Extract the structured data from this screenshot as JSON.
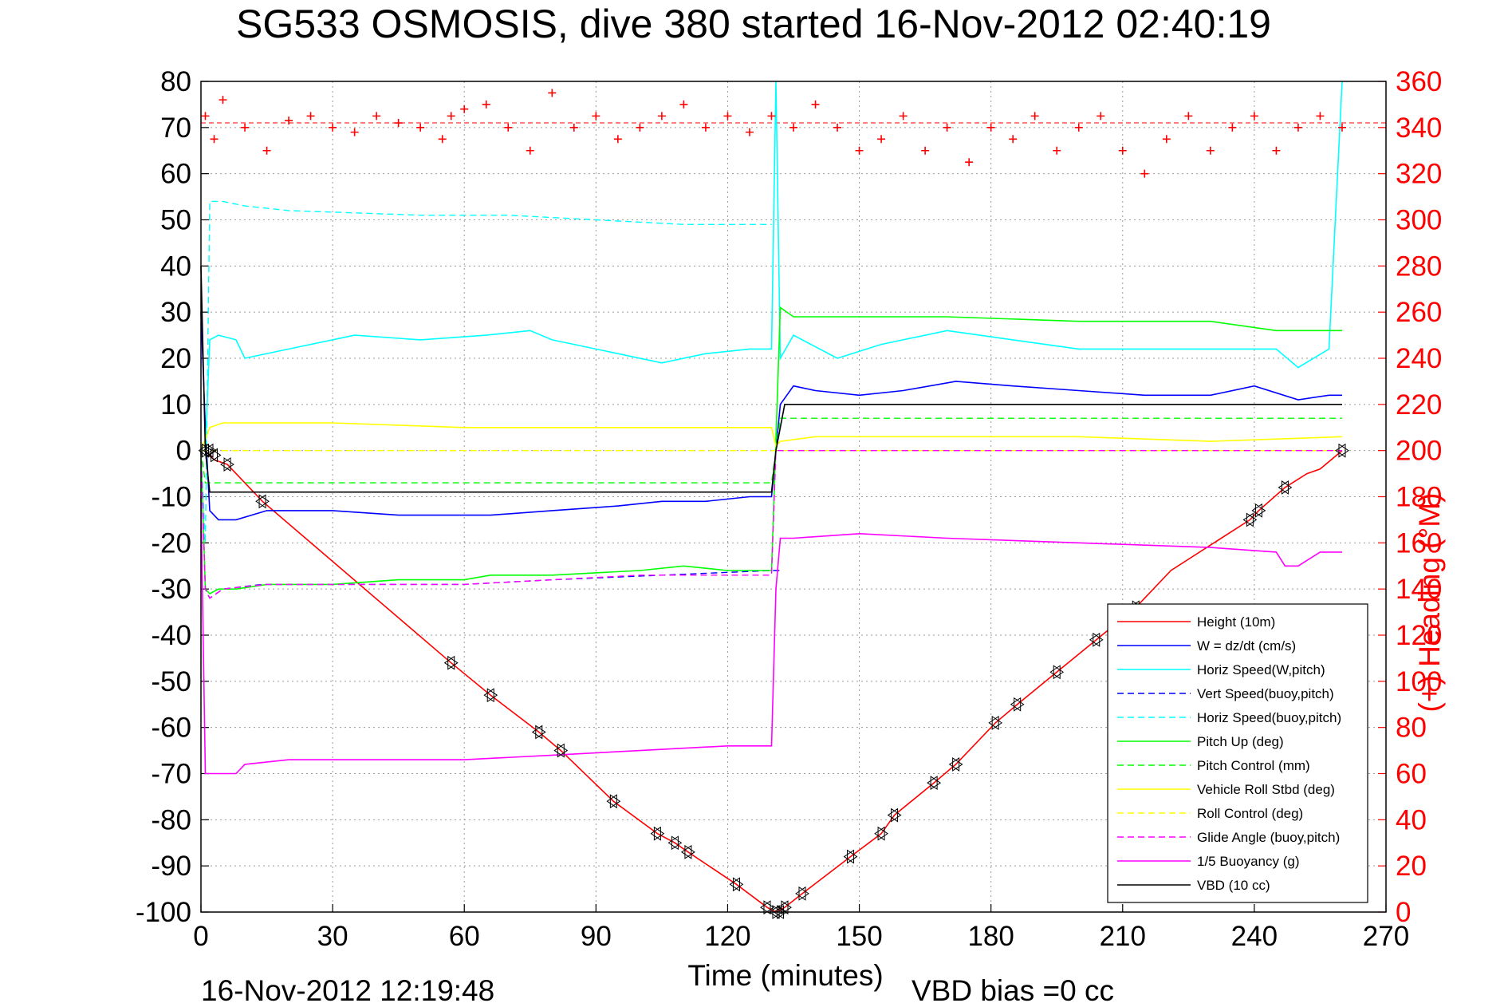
{
  "title": "SG533 OSMOSIS, dive 380 started 16-Nov-2012 02:40:19",
  "footer": {
    "timestamp": "16-Nov-2012 12:19:48",
    "vbd_bias": "VBD bias =0 cc"
  },
  "colors": {
    "height": "#ff0000",
    "w": "#0000ff",
    "horiz": "#00ffff",
    "vert_buoy": "#0000ff",
    "pitch": "#00ff00",
    "roll": "#ffff00",
    "glide": "#ff00ff",
    "buoyancy": "#ff00ff",
    "vbd": "#000000",
    "heading": "#ff0000"
  },
  "chart_data": {
    "type": "line",
    "xlabel": "Time (minutes)",
    "ylabel_right": "(+) Heading (°M)",
    "xlim": [
      0,
      270
    ],
    "ylim": [
      -100,
      80
    ],
    "ylim_right": [
      0,
      360
    ],
    "xticks": [
      "0",
      "30",
      "60",
      "90",
      "120",
      "150",
      "180",
      "210",
      "240",
      "270"
    ],
    "yticks": [
      "-100",
      "-90",
      "-80",
      "-70",
      "-60",
      "-50",
      "-40",
      "-30",
      "-20",
      "-10",
      "0",
      "10",
      "20",
      "30",
      "40",
      "50",
      "60",
      "70",
      "80"
    ],
    "yticks_right": [
      "0",
      "20",
      "40",
      "60",
      "80",
      "100",
      "120",
      "140",
      "160",
      "180",
      "200",
      "220",
      "240",
      "260",
      "280",
      "300",
      "320",
      "340",
      "360"
    ],
    "grid": true,
    "legend_position": "bottom-right",
    "legend": [
      {
        "label": "Height (10m)",
        "color": "#ff0000",
        "style": "solid"
      },
      {
        "label": "W = dz/dt (cm/s)",
        "color": "#0000ff",
        "style": "solid"
      },
      {
        "label": "Horiz Speed(W,pitch)",
        "color": "#00ffff",
        "style": "solid"
      },
      {
        "label": "Vert Speed(buoy,pitch)",
        "color": "#0000ff",
        "style": "dashed"
      },
      {
        "label": "Horiz Speed(buoy,pitch)",
        "color": "#00ffff",
        "style": "dashed"
      },
      {
        "label": "Pitch Up (deg)",
        "color": "#00ff00",
        "style": "solid"
      },
      {
        "label": "Pitch Control (mm)",
        "color": "#00ff00",
        "style": "dashed"
      },
      {
        "label": "Vehicle Roll Stbd (deg)",
        "color": "#ffff00",
        "style": "solid"
      },
      {
        "label": "Roll Control (deg)",
        "color": "#ffff00",
        "style": "dashed"
      },
      {
        "label": "Glide Angle (buoy,pitch)",
        "color": "#ff00ff",
        "style": "dashed"
      },
      {
        "label": "1/5 Buoyancy (g)",
        "color": "#ff00ff",
        "style": "solid"
      },
      {
        "label": "VBD (10 cc)",
        "color": "#000000",
        "style": "solid"
      }
    ],
    "series": [
      {
        "name": "Height (10m)",
        "color": "#ff0000",
        "style": "solid",
        "x": [
          0,
          1,
          2,
          3,
          6,
          14,
          57,
          66,
          77,
          82,
          94,
          104,
          108,
          111,
          122,
          129,
          131,
          133,
          137,
          148,
          155,
          158,
          167,
          172,
          181,
          186,
          195,
          204,
          213,
          221,
          239,
          241,
          247,
          252,
          255,
          260
        ],
        "y": [
          0,
          0,
          -1,
          -2,
          -3,
          -11,
          -46,
          -53,
          -61,
          -65,
          -76,
          -83,
          -85,
          -87,
          -94,
          -99,
          -100,
          -99,
          -96,
          -88,
          -83,
          -79,
          -72,
          -68,
          -59,
          -55,
          -48,
          -41,
          -34,
          -26,
          -15,
          -13,
          -8,
          -5,
          -4,
          0
        ]
      },
      {
        "name": "W = dz/dt (cm/s)",
        "color": "#0000ff",
        "style": "solid",
        "x": [
          0,
          1,
          2,
          4,
          8,
          15,
          30,
          45,
          57,
          66,
          80,
          95,
          105,
          115,
          125,
          130,
          132,
          135,
          140,
          150,
          160,
          172,
          185,
          200,
          215,
          230,
          240,
          250,
          257,
          260
        ],
        "y": [
          30,
          5,
          -13,
          -15,
          -15,
          -13,
          -13,
          -14,
          -14,
          -14,
          -13,
          -12,
          -11,
          -11,
          -10,
          -10,
          10,
          14,
          13,
          12,
          13,
          15,
          14,
          13,
          12,
          12,
          14,
          11,
          12,
          12
        ]
      },
      {
        "name": "Horiz Speed(W,pitch)",
        "color": "#00ffff",
        "style": "solid",
        "x": [
          0,
          1,
          2,
          4,
          8,
          10,
          20,
          35,
          50,
          65,
          75,
          80,
          90,
          105,
          115,
          125,
          130,
          131,
          132,
          135,
          145,
          155,
          170,
          185,
          200,
          215,
          230,
          245,
          250,
          257,
          260
        ],
        "y": [
          0,
          0,
          24,
          25,
          24,
          20,
          22,
          25,
          24,
          25,
          26,
          24,
          22,
          19,
          21,
          22,
          22,
          80,
          20,
          25,
          20,
          23,
          26,
          24,
          22,
          22,
          22,
          22,
          18,
          22,
          80
        ]
      },
      {
        "name": "Vert Speed(buoy,pitch)",
        "color": "#0000ff",
        "style": "dashed",
        "x": [
          0,
          1,
          2,
          5,
          14,
          60,
          80,
          105,
          130,
          132
        ],
        "y": [
          0,
          -30,
          -32,
          -30,
          -29,
          -29,
          -28,
          -27,
          -26,
          -26
        ]
      },
      {
        "name": "Horiz Speed(buoy,pitch)",
        "color": "#00ffff",
        "style": "dashed",
        "x": [
          0,
          1,
          2,
          5,
          10,
          20,
          50,
          70,
          90,
          110,
          125,
          130
        ],
        "y": [
          0,
          -20,
          54,
          54,
          53,
          52,
          51,
          51,
          50,
          49,
          49,
          49
        ]
      },
      {
        "name": "Pitch Up (deg)",
        "color": "#00ff00",
        "style": "solid",
        "x": [
          0,
          1,
          2,
          4,
          8,
          15,
          30,
          45,
          60,
          66,
          80,
          100,
          110,
          120,
          130,
          132,
          135,
          150,
          170,
          200,
          230,
          245,
          250,
          260
        ],
        "y": [
          0,
          -30,
          -31,
          -30,
          -30,
          -29,
          -29,
          -28,
          -28,
          -27,
          -27,
          -26,
          -25,
          -26,
          -26,
          31,
          29,
          29,
          29,
          28,
          28,
          26,
          26,
          26
        ]
      },
      {
        "name": "Pitch Control (mm)",
        "color": "#00ff00",
        "style": "dashed",
        "x": [
          0,
          1,
          3,
          60,
          100,
          130,
          131,
          132,
          260
        ],
        "y": [
          0,
          -7,
          -7,
          -7,
          -7,
          -7,
          0,
          7,
          7
        ]
      },
      {
        "name": "Vehicle Roll Stbd (deg)",
        "color": "#ffff00",
        "style": "solid",
        "x": [
          0,
          2,
          5,
          30,
          60,
          90,
          120,
          130,
          131,
          132,
          140,
          170,
          200,
          230,
          260
        ],
        "y": [
          0,
          5,
          6,
          6,
          5,
          5,
          5,
          5,
          1,
          2,
          3,
          3,
          3,
          2,
          3
        ]
      },
      {
        "name": "Roll Control (deg)",
        "color": "#ffff00",
        "style": "dashed",
        "x": [
          0,
          2,
          130,
          131,
          132,
          260
        ],
        "y": [
          0,
          0,
          0,
          0,
          0,
          0
        ]
      },
      {
        "name": "Glide Angle (buoy,pitch)",
        "color": "#ff00ff",
        "style": "dashed",
        "x": [
          0,
          1,
          2,
          5,
          15,
          60,
          80,
          100,
          130,
          131,
          132,
          260
        ],
        "y": [
          0,
          -30,
          -32,
          -30,
          -29,
          -29,
          -28,
          -27,
          -27,
          0,
          0,
          0
        ]
      },
      {
        "name": "1/5 Buoyancy (g)",
        "color": "#ff00ff",
        "style": "solid",
        "x": [
          0,
          1,
          2,
          5,
          8,
          10,
          20,
          40,
          60,
          80,
          100,
          120,
          130,
          131,
          132,
          135,
          150,
          170,
          200,
          230,
          245,
          247,
          250,
          255,
          260
        ],
        "y": [
          -10,
          -70,
          -70,
          -70,
          -70,
          -68,
          -67,
          -67,
          -67,
          -66,
          -65,
          -64,
          -64,
          -30,
          -19,
          -19,
          -18,
          -19,
          -20,
          -21,
          -22,
          -25,
          -25,
          -22,
          -22
        ]
      },
      {
        "name": "VBD (10 cc)",
        "color": "#000000",
        "style": "solid",
        "x": [
          0,
          1,
          2,
          5,
          60,
          100,
          130,
          131,
          133,
          135,
          260
        ],
        "y": [
          40,
          0,
          -9,
          -9,
          -9,
          -9,
          -9,
          0,
          10,
          10,
          10
        ]
      },
      {
        "name": "Heading (°M)",
        "color": "#ff0000",
        "style": "markers",
        "axis": "right",
        "x": [
          1,
          3,
          5,
          10,
          15,
          20,
          25,
          30,
          35,
          40,
          45,
          50,
          55,
          57,
          60,
          65,
          70,
          75,
          80,
          85,
          90,
          95,
          100,
          105,
          110,
          115,
          120,
          125,
          130,
          135,
          140,
          145,
          150,
          155,
          160,
          165,
          170,
          175,
          180,
          185,
          190,
          195,
          200,
          205,
          210,
          215,
          220,
          225,
          230,
          235,
          240,
          245,
          250,
          255,
          260
        ],
        "y": [
          345,
          335,
          352,
          340,
          330,
          343,
          345,
          340,
          338,
          345,
          342,
          340,
          335,
          345,
          348,
          350,
          340,
          330,
          355,
          340,
          345,
          335,
          340,
          345,
          350,
          340,
          345,
          338,
          345,
          340,
          350,
          340,
          330,
          335,
          345,
          330,
          340,
          325,
          340,
          335,
          345,
          330,
          340,
          345,
          330,
          320,
          335,
          345,
          330,
          340,
          345,
          330,
          340,
          345,
          340
        ]
      }
    ],
    "heading_reference": 342,
    "marker_x": [
      1,
      2,
      3,
      6,
      14,
      57,
      66,
      77,
      82,
      94,
      104,
      108,
      111,
      122,
      129,
      131,
      132,
      133,
      137,
      148,
      155,
      158,
      167,
      172,
      181,
      186,
      195,
      204,
      213,
      239,
      241,
      247,
      260
    ],
    "marker_y": [
      0,
      0,
      -1,
      -3,
      -11,
      -46,
      -53,
      -61,
      -65,
      -76,
      -83,
      -85,
      -87,
      -94,
      -99,
      -100,
      -100,
      -99,
      -96,
      -88,
      -83,
      -79,
      -72,
      -68,
      -59,
      -55,
      -48,
      -41,
      -34,
      -15,
      -13,
      -8,
      0
    ]
  }
}
